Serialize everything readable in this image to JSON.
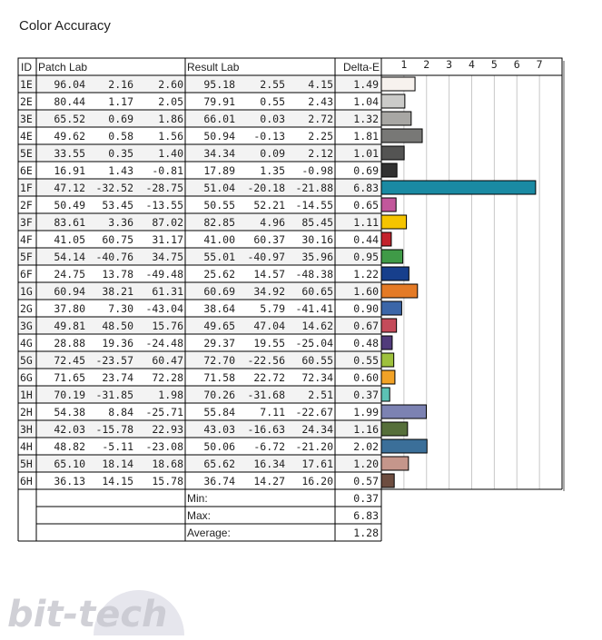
{
  "title": "Color Accuracy",
  "headers": {
    "id": "ID",
    "patch": "Patch Lab",
    "result": "Result Lab",
    "delta": "Delta-E"
  },
  "summary": {
    "min_label": "Min:",
    "max_label": "Max:",
    "avg_label": "Average:",
    "min": "0.37",
    "max": "6.83",
    "avg": "1.28"
  },
  "watermark": "bit-tech",
  "chart_data": {
    "type": "bar",
    "title": "Color Accuracy",
    "xlim": [
      0,
      7
    ],
    "ticks": [
      "1",
      "2",
      "3",
      "4",
      "5",
      "6",
      "7"
    ],
    "grid": true,
    "categories": [
      "1E",
      "2E",
      "3E",
      "4E",
      "5E",
      "6E",
      "1F",
      "2F",
      "3F",
      "4F",
      "5F",
      "6F",
      "1G",
      "2G",
      "3G",
      "4G",
      "5G",
      "6G",
      "1H",
      "2H",
      "3H",
      "4H",
      "5H",
      "6H"
    ],
    "patch_lab": [
      [
        "96.04",
        "2.16",
        "2.60"
      ],
      [
        "80.44",
        "1.17",
        "2.05"
      ],
      [
        "65.52",
        "0.69",
        "1.86"
      ],
      [
        "49.62",
        "0.58",
        "1.56"
      ],
      [
        "33.55",
        "0.35",
        "1.40"
      ],
      [
        "16.91",
        "1.43",
        "-0.81"
      ],
      [
        "47.12",
        "-32.52",
        "-28.75"
      ],
      [
        "50.49",
        "53.45",
        "-13.55"
      ],
      [
        "83.61",
        "3.36",
        "87.02"
      ],
      [
        "41.05",
        "60.75",
        "31.17"
      ],
      [
        "54.14",
        "-40.76",
        "34.75"
      ],
      [
        "24.75",
        "13.78",
        "-49.48"
      ],
      [
        "60.94",
        "38.21",
        "61.31"
      ],
      [
        "37.80",
        "7.30",
        "-43.04"
      ],
      [
        "49.81",
        "48.50",
        "15.76"
      ],
      [
        "28.88",
        "19.36",
        "-24.48"
      ],
      [
        "72.45",
        "-23.57",
        "60.47"
      ],
      [
        "71.65",
        "23.74",
        "72.28"
      ],
      [
        "70.19",
        "-31.85",
        "1.98"
      ],
      [
        "54.38",
        "8.84",
        "-25.71"
      ],
      [
        "42.03",
        "-15.78",
        "22.93"
      ],
      [
        "48.82",
        "-5.11",
        "-23.08"
      ],
      [
        "65.10",
        "18.14",
        "18.68"
      ],
      [
        "36.13",
        "14.15",
        "15.78"
      ]
    ],
    "result_lab": [
      [
        "95.18",
        "2.55",
        "4.15"
      ],
      [
        "79.91",
        "0.55",
        "2.43"
      ],
      [
        "66.01",
        "0.03",
        "2.72"
      ],
      [
        "50.94",
        "-0.13",
        "2.25"
      ],
      [
        "34.34",
        "0.09",
        "2.12"
      ],
      [
        "17.89",
        "1.35",
        "-0.98"
      ],
      [
        "51.04",
        "-20.18",
        "-21.88"
      ],
      [
        "50.55",
        "52.21",
        "-14.55"
      ],
      [
        "82.85",
        "4.96",
        "85.45"
      ],
      [
        "41.00",
        "60.37",
        "30.16"
      ],
      [
        "55.01",
        "-40.97",
        "35.96"
      ],
      [
        "25.62",
        "14.57",
        "-48.38"
      ],
      [
        "60.69",
        "34.92",
        "60.65"
      ],
      [
        "38.64",
        "5.79",
        "-41.41"
      ],
      [
        "49.65",
        "47.04",
        "14.62"
      ],
      [
        "29.37",
        "19.55",
        "-25.04"
      ],
      [
        "72.70",
        "-22.56",
        "60.55"
      ],
      [
        "71.58",
        "22.72",
        "72.34"
      ],
      [
        "70.26",
        "-31.68",
        "2.51"
      ],
      [
        "55.84",
        "7.11",
        "-22.67"
      ],
      [
        "43.03",
        "-16.63",
        "24.34"
      ],
      [
        "50.06",
        "-6.72",
        "-21.20"
      ],
      [
        "65.62",
        "16.34",
        "17.61"
      ],
      [
        "36.74",
        "14.27",
        "16.20"
      ]
    ],
    "values": [
      1.49,
      1.04,
      1.32,
      1.81,
      1.01,
      0.69,
      6.83,
      0.65,
      1.11,
      0.44,
      0.95,
      1.22,
      1.6,
      0.9,
      0.67,
      0.48,
      0.55,
      0.6,
      0.37,
      1.99,
      1.16,
      2.02,
      1.2,
      0.57
    ],
    "delta_labels": [
      "1.49",
      "1.04",
      "1.32",
      "1.81",
      "1.01",
      "0.69",
      "6.83",
      "0.65",
      "1.11",
      "0.44",
      "0.95",
      "1.22",
      "1.60",
      "0.90",
      "0.67",
      "0.48",
      "0.55",
      "0.60",
      "0.37",
      "1.99",
      "1.16",
      "2.02",
      "1.20",
      "0.57"
    ],
    "colors": [
      "#f7f2ee",
      "#cbcbc9",
      "#a8a7a4",
      "#787876",
      "#545453",
      "#313131",
      "#1a8aa3",
      "#c2579b",
      "#f5c400",
      "#c3222c",
      "#3f9a47",
      "#173f8c",
      "#e47a25",
      "#3b66a8",
      "#c44b5a",
      "#513b7b",
      "#9ec13d",
      "#f2a226",
      "#5cc2b4",
      "#7c82b2",
      "#566f3a",
      "#3b6f99",
      "#c5968b",
      "#6d4d40"
    ]
  }
}
